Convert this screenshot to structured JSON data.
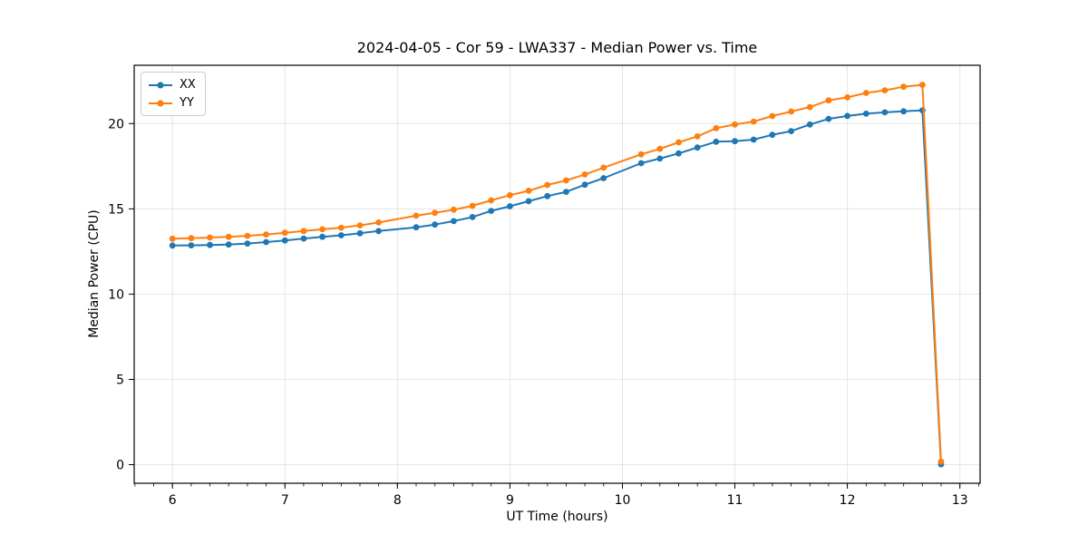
{
  "figure": {
    "title": "2024-04-05 - Cor 59 - LWA337 - Median Power vs. Time",
    "xlabel": "UT Time (hours)",
    "ylabel": "Median Power (CPU)"
  },
  "legend": {
    "position": "upper left",
    "items": [
      {
        "label": "XX",
        "color": "#1f77b4"
      },
      {
        "label": "YY",
        "color": "#ff7f0e"
      }
    ]
  },
  "chart_data": {
    "type": "line",
    "title": "2024-04-05 - Cor 59 - LWA337 - Median Power vs. Time",
    "xlabel": "UT Time (hours)",
    "ylabel": "Median Power (CPU)",
    "grid": true,
    "legend_position": "upper left",
    "xlim": [
      5.66,
      13.18
    ],
    "ylim": [
      -1.09,
      23.42
    ],
    "x_ticks": [
      6,
      7,
      8,
      9,
      10,
      11,
      12,
      13
    ],
    "y_ticks": [
      0,
      5,
      10,
      15,
      20
    ],
    "x_minor_step": 0.16667,
    "x": [
      6.0,
      6.167,
      6.333,
      6.5,
      6.667,
      6.833,
      7.0,
      7.167,
      7.333,
      7.5,
      7.667,
      7.833,
      8.167,
      8.333,
      8.5,
      8.667,
      8.833,
      9.0,
      9.167,
      9.333,
      9.5,
      9.667,
      9.833,
      10.167,
      10.333,
      10.5,
      10.667,
      10.833,
      11.0,
      11.167,
      11.333,
      11.5,
      11.667,
      11.833,
      12.0,
      12.167,
      12.333,
      12.5,
      12.667,
      12.833
    ],
    "series": [
      {
        "name": "XX",
        "color": "#1f77b4",
        "values": [
          12.85,
          12.86,
          12.88,
          12.91,
          12.97,
          13.05,
          13.15,
          13.26,
          13.36,
          13.45,
          13.57,
          13.7,
          13.92,
          14.08,
          14.28,
          14.52,
          14.88,
          15.15,
          15.45,
          15.75,
          16.0,
          16.42,
          16.8,
          17.68,
          17.95,
          18.25,
          18.6,
          18.94,
          18.97,
          19.06,
          19.34,
          19.56,
          19.95,
          20.28,
          20.45,
          20.58,
          20.66,
          20.72,
          20.78,
          0.02
        ]
      },
      {
        "name": "YY",
        "color": "#ff7f0e",
        "values": [
          13.25,
          13.28,
          13.32,
          13.36,
          13.42,
          13.5,
          13.6,
          13.7,
          13.8,
          13.9,
          14.03,
          14.2,
          14.6,
          14.77,
          14.95,
          15.18,
          15.5,
          15.8,
          16.06,
          16.4,
          16.67,
          17.02,
          17.42,
          18.2,
          18.52,
          18.9,
          19.25,
          19.73,
          19.95,
          20.12,
          20.44,
          20.71,
          20.97,
          21.36,
          21.54,
          21.8,
          21.95,
          22.16,
          22.27,
          0.18
        ]
      }
    ]
  }
}
